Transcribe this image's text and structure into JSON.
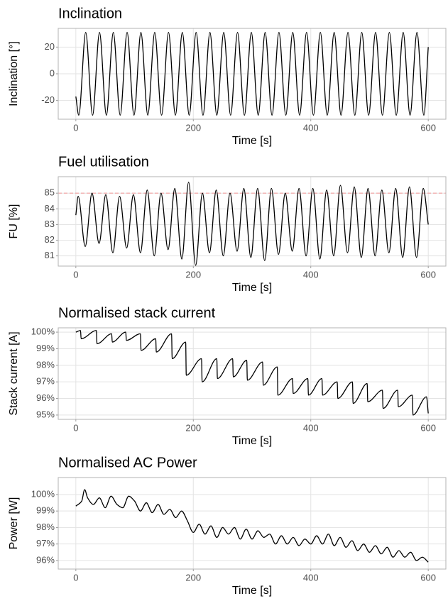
{
  "chart_data": [
    {
      "type": "line",
      "title": "Inclination",
      "x_label": "Time [s]",
      "y_label": "Inclination [°]",
      "color": "#000000",
      "grid": true,
      "xlim": [
        -30,
        630
      ],
      "xticks": [
        0,
        200,
        400,
        600
      ],
      "ylim": [
        -34,
        34
      ],
      "yticks": [
        -20,
        0,
        20
      ],
      "x": [
        0,
        5,
        16.8,
        28.5,
        40.3,
        52,
        63.8,
        75.5,
        87.3,
        99,
        110.8,
        122.5,
        134.3,
        146,
        157.8,
        169.5,
        181.3,
        193,
        204.8,
        216.5,
        228.3,
        240,
        251.8,
        263.5,
        275.3,
        287,
        298.8,
        310.5,
        322.3,
        334,
        345.8,
        357.5,
        369.3,
        381,
        392.8,
        404.5,
        416.3,
        428,
        439.8,
        451.5,
        463.3,
        475,
        486.8,
        498.5,
        510.3,
        522,
        533.8,
        545.5,
        557.3,
        569,
        580.8,
        592.5,
        600
      ],
      "values": [
        -17,
        -31,
        31,
        -31,
        31,
        -31,
        31,
        -31,
        31,
        -31,
        31,
        -31,
        31,
        -31,
        31,
        -31,
        31,
        -31,
        31,
        -31,
        31,
        -31,
        31,
        -31,
        31,
        -31,
        31,
        -31,
        31,
        -31,
        31,
        -31,
        31,
        -31,
        31,
        -31,
        31,
        -31,
        31,
        -31,
        31,
        -31,
        31,
        -31,
        31,
        -31,
        31,
        -31,
        31,
        -31,
        31,
        -31,
        20
      ]
    },
    {
      "type": "line",
      "title": "Fuel utilisation",
      "x_label": "Time [s]",
      "y_label": "FU [%]",
      "color": "#000000",
      "grid": true,
      "xlim": [
        -30,
        630
      ],
      "xticks": [
        0,
        200,
        400,
        600
      ],
      "ylim": [
        80.35,
        86.05
      ],
      "yticks": [
        81,
        82,
        83,
        84,
        85
      ],
      "reference_line": {
        "value": 85,
        "color": "#f4a0a0"
      },
      "x": [
        0,
        4,
        16,
        27.5,
        39.5,
        51,
        63,
        74.5,
        86.5,
        98,
        110,
        121.5,
        133.5,
        145,
        157,
        168.5,
        180.5,
        192,
        204,
        215.5,
        227.5,
        239,
        251,
        262.5,
        274.5,
        286,
        298,
        309.5,
        321.5,
        333,
        345,
        356.5,
        368.5,
        380,
        392,
        403.5,
        415.5,
        427,
        439,
        450.5,
        462.5,
        474,
        486,
        497.5,
        509.5,
        521,
        533,
        544.5,
        556.5,
        568,
        580,
        591.5,
        600
      ],
      "values": [
        83.6,
        84.8,
        81.6,
        85.0,
        81.8,
        84.9,
        81.2,
        84.8,
        81.5,
        84.9,
        81.2,
        85.2,
        81.0,
        85.0,
        81.4,
        85.3,
        80.8,
        85.7,
        80.4,
        85.0,
        81.2,
        85.2,
        81.0,
        85.0,
        81.3,
        85.3,
        80.9,
        85.3,
        80.7,
        85.3,
        81.1,
        85.0,
        81.3,
        85.3,
        81.0,
        85.3,
        80.8,
        85.2,
        81.0,
        85.5,
        81.2,
        85.4,
        80.9,
        85.3,
        81.0,
        85.2,
        81.2,
        85.3,
        80.9,
        85.4,
        80.9,
        85.3,
        83.0
      ]
    },
    {
      "type": "line",
      "title": "Normalised stack current",
      "x_label": "Time [s]",
      "y_label": "Stack current [A]",
      "color": "#000000",
      "grid": true,
      "xlim": [
        -30,
        630
      ],
      "xticks": [
        0,
        200,
        400,
        600
      ],
      "ylim": [
        94.74,
        100.26
      ],
      "yticks": [
        {
          "value": 95,
          "label": "95%"
        },
        {
          "value": 96,
          "label": "96%"
        },
        {
          "value": 97,
          "label": "97%"
        },
        {
          "value": 98,
          "label": "98%"
        },
        {
          "value": 99,
          "label": "99%"
        },
        {
          "value": 100,
          "label": "100%"
        }
      ],
      "x": [
        0,
        8,
        9,
        35,
        36,
        61,
        62,
        85,
        86,
        110,
        111,
        136,
        137,
        163,
        164,
        187,
        188,
        214,
        215,
        240,
        241,
        267,
        268,
        291,
        292,
        318,
        319,
        343,
        344,
        369,
        370,
        395,
        396,
        419,
        420,
        445,
        446,
        471,
        472,
        496,
        497,
        522,
        523,
        548,
        549,
        573,
        574,
        597,
        600
      ],
      "values": [
        100.0,
        100.1,
        99.6,
        100.1,
        99.3,
        99.9,
        99.4,
        100.0,
        99.5,
        99.9,
        98.9,
        99.6,
        98.8,
        99.9,
        98.4,
        99.4,
        97.4,
        98.4,
        97.0,
        98.4,
        97.2,
        98.4,
        97.3,
        98.3,
        97.1,
        98.2,
        96.8,
        97.9,
        96.2,
        97.2,
        96.3,
        97.2,
        96.2,
        97.2,
        96.2,
        97.0,
        96.0,
        97.0,
        95.7,
        96.9,
        95.8,
        96.5,
        95.4,
        96.5,
        95.5,
        96.2,
        95.0,
        96.1,
        95.1
      ]
    },
    {
      "type": "line",
      "title": "Normalised AC Power",
      "x_label": "Time [s]",
      "y_label": "Power [W]",
      "color": "#000000",
      "grid": true,
      "xlim": [
        -30,
        630
      ],
      "xticks": [
        0,
        200,
        400,
        600
      ],
      "ylim": [
        95.48,
        101.03
      ],
      "yticks": [
        {
          "value": 96,
          "label": "96%"
        },
        {
          "value": 97,
          "label": "97%"
        },
        {
          "value": 98,
          "label": "98%"
        },
        {
          "value": 99,
          "label": "99%"
        },
        {
          "value": 100,
          "label": "100%"
        }
      ],
      "x": [
        0,
        10,
        15,
        20,
        30,
        40,
        50,
        60,
        70,
        80,
        90,
        100,
        110,
        120,
        130,
        140,
        150,
        160,
        170,
        180,
        190,
        200,
        210,
        220,
        230,
        240,
        250,
        260,
        270,
        280,
        290,
        300,
        310,
        320,
        330,
        340,
        350,
        360,
        370,
        380,
        390,
        400,
        410,
        420,
        430,
        440,
        450,
        460,
        470,
        480,
        490,
        500,
        510,
        520,
        530,
        540,
        550,
        560,
        570,
        580,
        590,
        600
      ],
      "values": [
        99.3,
        99.6,
        100.3,
        99.8,
        99.4,
        99.8,
        99.2,
        99.9,
        99.4,
        99.2,
        99.9,
        99.6,
        99.0,
        99.5,
        98.9,
        99.4,
        98.8,
        99.1,
        98.6,
        99.0,
        98.4,
        97.7,
        98.2,
        97.6,
        98.1,
        97.4,
        98.0,
        97.6,
        98.0,
        97.3,
        97.9,
        97.3,
        97.8,
        97.4,
        97.6,
        97.0,
        97.5,
        97.0,
        97.4,
        96.9,
        97.3,
        97.0,
        97.5,
        97.0,
        97.6,
        96.9,
        97.4,
        96.8,
        97.2,
        96.6,
        97.0,
        96.5,
        96.9,
        96.4,
        96.8,
        96.2,
        96.6,
        96.2,
        96.5,
        96.0,
        96.2,
        95.9
      ]
    }
  ]
}
